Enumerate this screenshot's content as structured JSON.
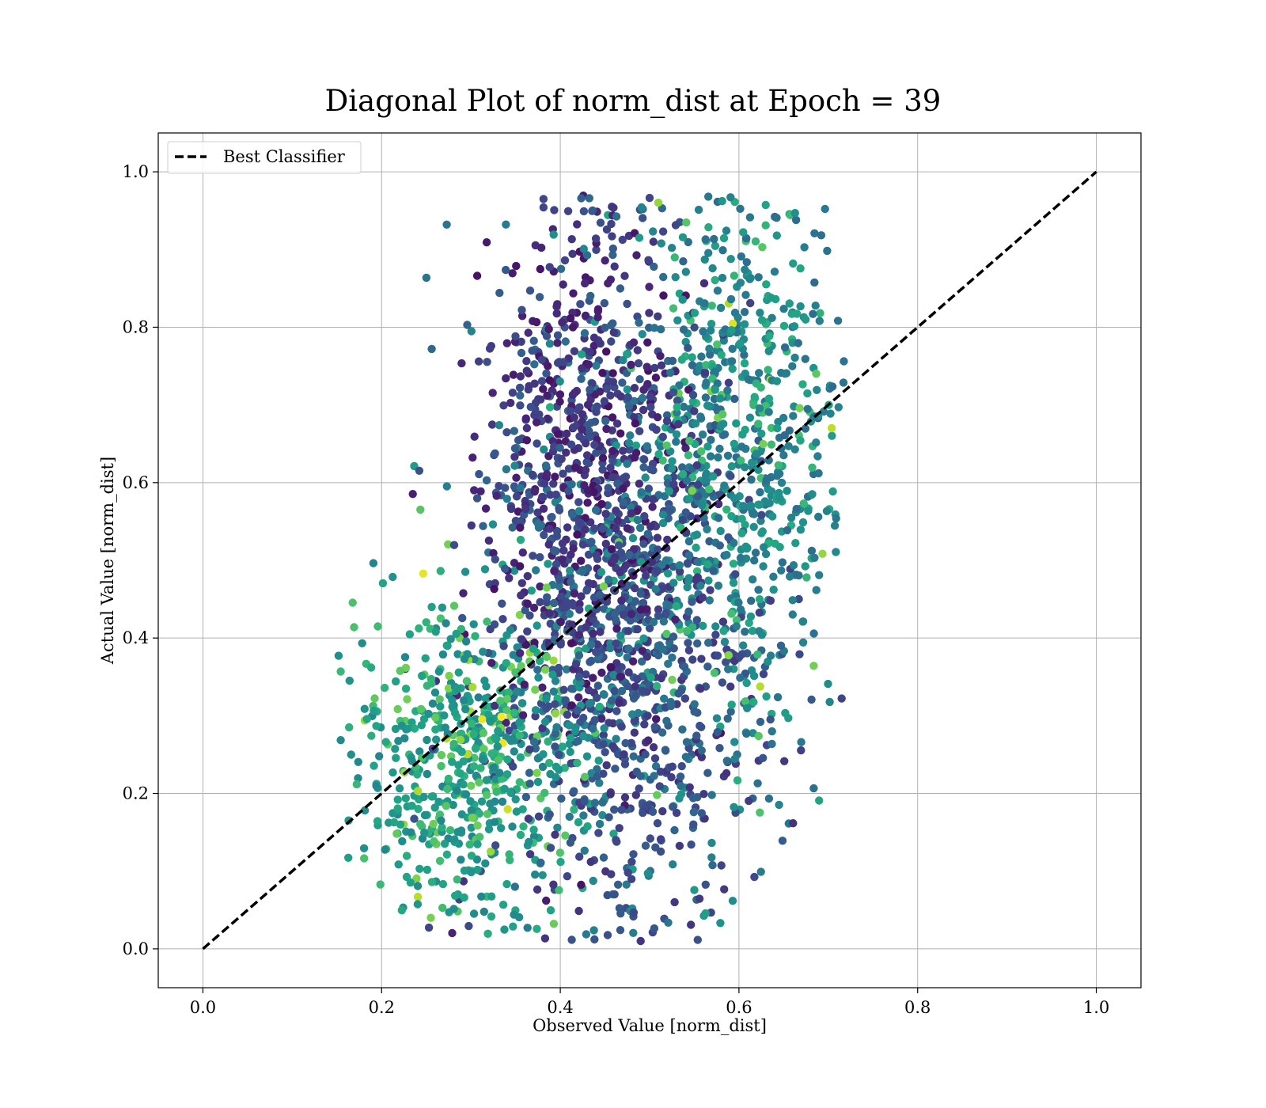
{
  "chart_data": {
    "type": "scatter",
    "title": "Diagonal Plot of norm_dist at Epoch = 39",
    "xlabel": "Observed Value [norm_dist]",
    "ylabel": "Actual Value [norm_dist]",
    "xlim": [
      -0.05,
      1.05
    ],
    "ylim": [
      -0.05,
      1.05
    ],
    "xticks": [
      0.0,
      0.2,
      0.4,
      0.6,
      0.8,
      1.0
    ],
    "yticks": [
      0.0,
      0.2,
      0.4,
      0.6,
      0.8,
      1.0
    ],
    "xtick_labels": [
      "0.0",
      "0.2",
      "0.4",
      "0.6",
      "0.8",
      "1.0"
    ],
    "ytick_labels": [
      "0.0",
      "0.2",
      "0.4",
      "0.6",
      "0.8",
      "1.0"
    ],
    "grid": true,
    "legend": {
      "placement": "upper-left",
      "entries": [
        "Best Classifier"
      ]
    },
    "colormap": "viridis",
    "reference_line": {
      "name": "Best Classifier",
      "x": [
        0.0,
        1.0
      ],
      "y": [
        0.0,
        1.0
      ],
      "style": "dashed",
      "color": "#000000"
    },
    "scatter_clusters": [
      {
        "x_center": 0.43,
        "y_center": 0.62,
        "x_spread": 0.06,
        "y_spread": 0.2,
        "color_level": 0.05,
        "count": 900
      },
      {
        "x_center": 0.6,
        "y_center": 0.65,
        "x_spread": 0.06,
        "y_spread": 0.18,
        "color_level": 0.35,
        "count": 700
      },
      {
        "x_center": 0.3,
        "y_center": 0.25,
        "x_spread": 0.07,
        "y_spread": 0.1,
        "color_level": 0.45,
        "count": 600
      },
      {
        "x_center": 0.48,
        "y_center": 0.35,
        "x_spread": 0.08,
        "y_spread": 0.18,
        "color_level": 0.15,
        "count": 900
      }
    ]
  }
}
